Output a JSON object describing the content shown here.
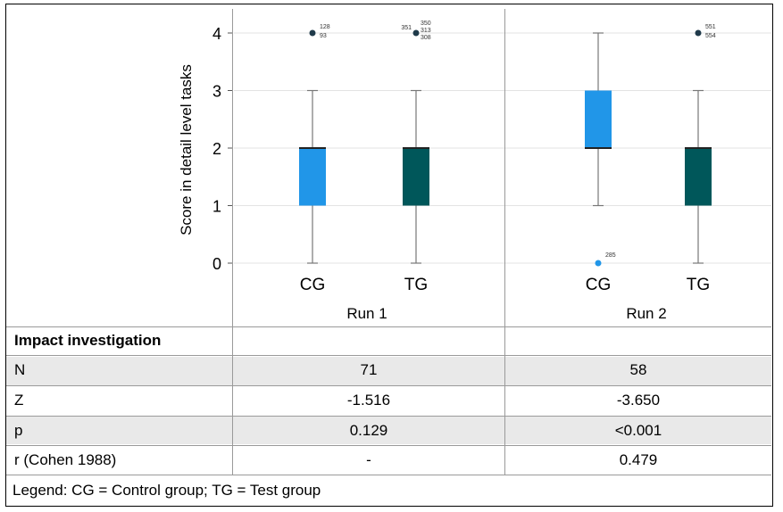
{
  "chart_data": {
    "type": "box",
    "ylabel": "Score in detail level tasks",
    "ylim": [
      0,
      4
    ],
    "yticks": [
      "0",
      "1",
      "2",
      "3",
      "4"
    ],
    "colors": {
      "CG": "#2196e8",
      "TG": "#00575a"
    },
    "panels": [
      {
        "label": "Run 1",
        "groups": [
          {
            "name": "CG",
            "min": 0,
            "q1": 1,
            "median": 2,
            "q3": 2,
            "max": 3,
            "outliers": [
              {
                "value": 4,
                "labels": [
                  "128",
                  "93"
                ]
              }
            ]
          },
          {
            "name": "TG",
            "min": 0,
            "q1": 1,
            "median": 2,
            "q3": 2,
            "max": 3,
            "outliers": [
              {
                "value": 4,
                "labels": [
                  "351",
                  "350",
                  "313",
                  "308"
                ]
              }
            ]
          }
        ]
      },
      {
        "label": "Run 2",
        "groups": [
          {
            "name": "CG",
            "min": 1,
            "q1": 2,
            "median": 2,
            "q3": 3,
            "max": 4,
            "outliers": [
              {
                "value": 0,
                "labels": [
                  "285"
                ]
              }
            ]
          },
          {
            "name": "TG",
            "min": 0,
            "q1": 1,
            "median": 2,
            "q3": 2,
            "max": 3,
            "outliers": [
              {
                "value": 4,
                "labels": [
                  "551",
                  "554"
                ]
              }
            ]
          }
        ]
      }
    ]
  },
  "table": {
    "header": "Impact investigation",
    "rows": [
      {
        "label": "N",
        "run1": "71",
        "run2": "58"
      },
      {
        "label": "Z",
        "run1": "-1.516",
        "run2": "-3.650"
      },
      {
        "label": "p",
        "run1": "0.129",
        "run2": "<0.001"
      },
      {
        "label": "r (Cohen 1988)",
        "run1": "-",
        "run2": "0.479"
      }
    ]
  },
  "legend": "Legend: CG = Control group; TG = Test group"
}
